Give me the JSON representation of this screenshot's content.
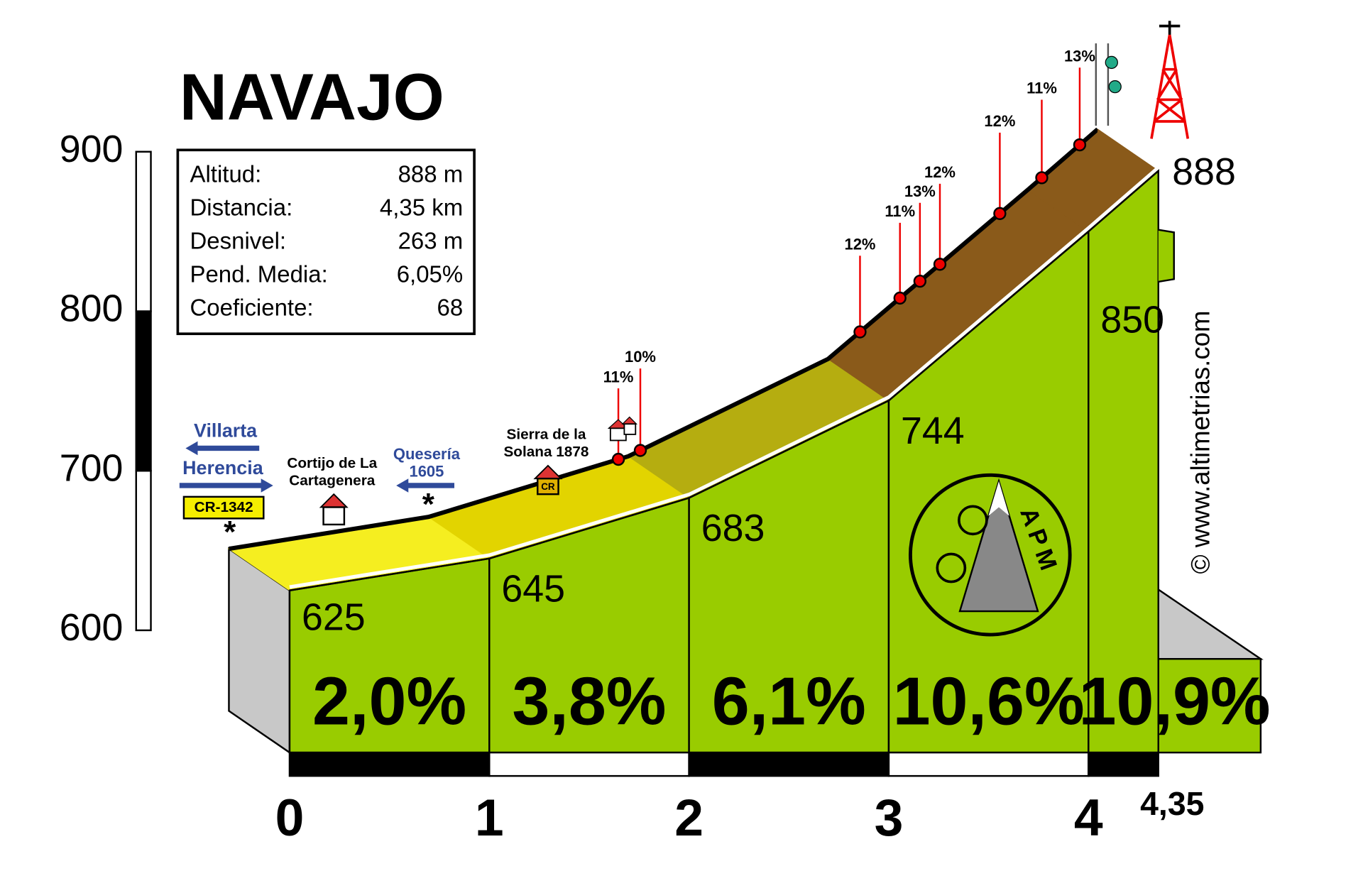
{
  "chart_data": {
    "type": "profile",
    "title": "NAVAJO",
    "info": [
      {
        "label": "Altitud:",
        "value": "888 m"
      },
      {
        "label": "Distancia:",
        "value": "4,35 km"
      },
      {
        "label": "Desnivel:",
        "value": "263 m"
      },
      {
        "label": "Pend. Media:",
        "value": "6,05%"
      },
      {
        "label": "Coeficiente:",
        "value": "68"
      }
    ],
    "x": [
      0,
      1,
      2,
      3,
      4,
      4.35
    ],
    "values": [
      625,
      645,
      683,
      744,
      850,
      888
    ],
    "segments": {
      "values": [
        2.0,
        3.8,
        6.1,
        10.6,
        10.9
      ],
      "value_labels": [
        "2,0%",
        "3,8%",
        "6,1%",
        "10,6%",
        "10,9%"
      ]
    },
    "steep_points": {
      "values": [
        11,
        10,
        12,
        11,
        13,
        12,
        12,
        11,
        13
      ],
      "value_labels": [
        "11%",
        "10%",
        "12%",
        "11%",
        "13%",
        "12%",
        "12%",
        "11%",
        "13%"
      ]
    },
    "xlim": [
      0,
      4.35
    ],
    "xticks": [
      0,
      1,
      2,
      3,
      4,
      {
        "value": 4.35,
        "label": "4,35"
      }
    ],
    "ylim": [
      600,
      900
    ],
    "yticks": [
      600,
      700,
      800,
      900
    ],
    "roads": {
      "left": "Villarta",
      "right": "Herencia",
      "code": "CR-1342",
      "dairy": [
        "Quesería",
        "1605"
      ]
    },
    "places": [
      [
        "Cortijo de La",
        "Cartagenera"
      ],
      [
        "Sierra de la",
        "Solana 1878"
      ]
    ],
    "house_sign": "CR",
    "logo": "APM",
    "credit": "© www.altimetrias.com",
    "face_color": "#99cc00"
  }
}
